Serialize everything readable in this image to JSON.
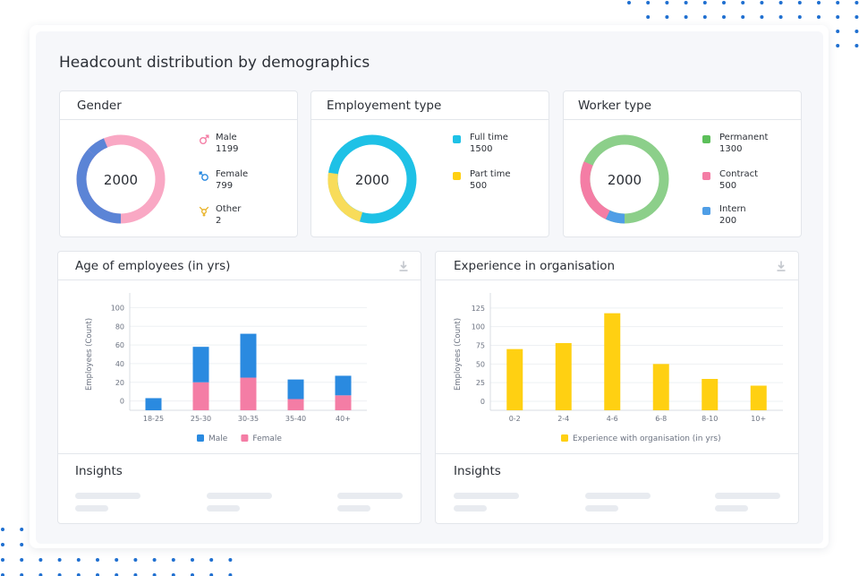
{
  "page": {
    "title": "Headcount distribution by demographics"
  },
  "gender_card": {
    "title": "Gender",
    "total": "2000",
    "items": [
      {
        "label": "Male",
        "value": "1199",
        "icon": "male-symbol-icon",
        "color": "#f9a8c4"
      },
      {
        "label": "Female",
        "value": "799",
        "icon": "female-symbol-icon",
        "color": "#5b84d6"
      },
      {
        "label": "Other",
        "value": "2",
        "icon": "other-gender-icon",
        "color": "#f2b93b"
      }
    ]
  },
  "employment_card": {
    "title": "Employement type",
    "total": "2000",
    "items": [
      {
        "label": "Full time",
        "value": "1500",
        "color": "#1ec1e6"
      },
      {
        "label": "Part time",
        "value": "500",
        "color": "#f8dc5a"
      }
    ]
  },
  "worker_card": {
    "title": "Worker type",
    "total": "2000",
    "items": [
      {
        "label": "Permanent",
        "value": "1300",
        "color": "#8ccf8a"
      },
      {
        "label": "Contract",
        "value": "500",
        "color": "#f47da5"
      },
      {
        "label": "Intern",
        "value": "200",
        "color": "#4f9ee6"
      }
    ]
  },
  "age_card": {
    "title": "Age of employees (in yrs)",
    "insights_title": "Insights",
    "download_icon": "download-icon"
  },
  "experience_card": {
    "title": "Experience in organisation",
    "insights_title": "Insights",
    "download_icon": "download-icon"
  },
  "chart_data": [
    {
      "type": "bar",
      "stacked": true,
      "categories": [
        "18-25",
        "25-30",
        "30-35",
        "35-40",
        "40+"
      ],
      "series": [
        {
          "name": "Female",
          "color": "#f47da5",
          "values": [
            10,
            30,
            35,
            12,
            16
          ]
        },
        {
          "name": "Male",
          "color": "#2a8ae0",
          "values": [
            13,
            38,
            47,
            21,
            21
          ]
        }
      ],
      "ylabel": "Employees (Count)",
      "yticks": [
        "0",
        "20",
        "40",
        "60",
        "80",
        "100"
      ],
      "ylim": [
        -10,
        110
      ],
      "grid": true,
      "legend": "bottom"
    },
    {
      "type": "bar",
      "categories": [
        "0-2",
        "2-4",
        "4-6",
        "6-8",
        "8-10",
        "10+"
      ],
      "series": [
        {
          "name": "Experience with organisation (in yrs)",
          "color": "#ffd012",
          "values": [
            82,
            90,
            130,
            62,
            42,
            33
          ]
        }
      ],
      "ylabel": "Employees (Count)",
      "yticks": [
        "0",
        "25",
        "50",
        "75",
        "100",
        "125"
      ],
      "ylim": [
        -12,
        138
      ],
      "grid": true,
      "legend": "bottom"
    }
  ],
  "colors": {
    "accent_blue": "#2a8ae0",
    "dots": "#1f6fd0",
    "border": "#e3e6eb",
    "skeleton": "#e8ebf0"
  }
}
